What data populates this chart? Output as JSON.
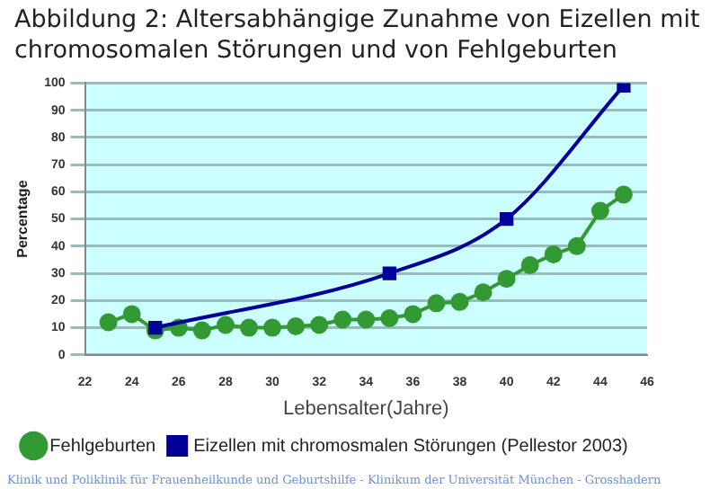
{
  "chart_data": {
    "type": "line",
    "title": "Abbildung 2: Altersabhängige Zunahme von Eizellen mit chromosomalen Störungen und von Fehlgeburten",
    "xlabel": "Lebensalter(Jahre)",
    "ylabel": "Percentage",
    "xlim": [
      22,
      46
    ],
    "xticks": [
      22,
      24,
      26,
      28,
      30,
      32,
      34,
      36,
      38,
      40,
      42,
      44,
      46
    ],
    "ylim": [
      0,
      100
    ],
    "yticks": [
      0,
      10,
      20,
      30,
      40,
      50,
      60,
      70,
      80,
      90,
      100
    ],
    "grid": "y",
    "legend": "bottom",
    "series": [
      {
        "name": "Fehlgeburten",
        "color": "#339933",
        "marker": "circle",
        "x": [
          23,
          24,
          25,
          26,
          27,
          28,
          29,
          30,
          31,
          32,
          33,
          34,
          35,
          36,
          37,
          38,
          39,
          40,
          41,
          42,
          43,
          44,
          45
        ],
        "values": [
          12,
          15,
          9,
          10,
          9,
          11,
          10,
          10,
          10.5,
          11,
          13,
          13,
          13.5,
          15,
          19,
          19.5,
          23,
          28,
          33,
          37,
          40,
          53,
          59
        ]
      },
      {
        "name": "Eizellen mit chromosmalen Störungen (Pellestor 2003)",
        "color": "#000099",
        "marker": "square",
        "x": [
          25,
          35,
          40,
          45
        ],
        "values": [
          10,
          30,
          50,
          99
        ]
      }
    ],
    "annotations": [
      "Klinik und Poliklinik für Frauenheilkunde und Geburtshilfe - Klinikum der Universität München - Grosshadern"
    ]
  }
}
